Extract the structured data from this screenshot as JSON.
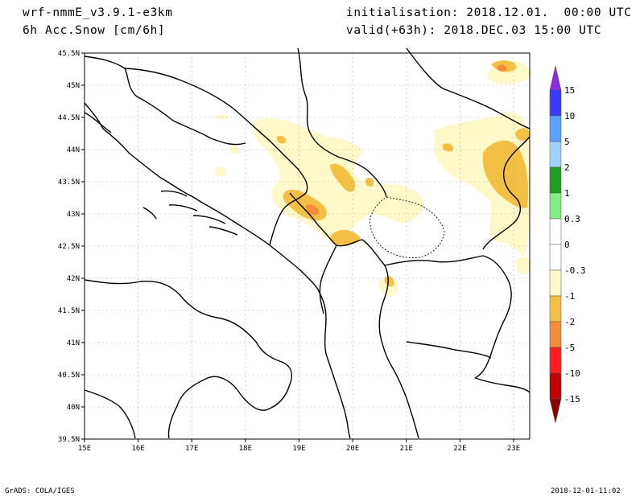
{
  "header": {
    "model": "wrf-nmmE_v3.9.1-e3km",
    "field": "6h Acc.Snow [cm/6h]",
    "init": "initialisation: 2018.12.01.  00:00 UTC",
    "valid": "valid(+63h): 2018.DEC.03 15:00 UTC"
  },
  "axes": {
    "lat_labels": [
      "39.5N",
      "40N",
      "40.5N",
      "41N",
      "41.5N",
      "42N",
      "42.5N",
      "43N",
      "43.5N",
      "44N",
      "44.5N",
      "45N",
      "45.5N"
    ],
    "lon_labels": [
      "15E",
      "16E",
      "17E",
      "18E",
      "19E",
      "20E",
      "21E",
      "22E",
      "23E"
    ],
    "lat_range": [
      39.5,
      45.5
    ],
    "lon_range": [
      15,
      23.3
    ]
  },
  "colorbar": {
    "labels": [
      "15",
      "10",
      "5",
      "2",
      "1",
      "0.3",
      "0",
      "-0.3",
      "-1",
      "-2",
      "-5",
      "-10",
      "-15"
    ],
    "colors": [
      "#8a2be2",
      "#3a3aff",
      "#5aa0ff",
      "#a0d0ff",
      "#1e9e1e",
      "#80ee80",
      "#ffffff",
      "#ffffff",
      "#fff8c8",
      "#f4c043",
      "#f48c3a",
      "#ff1e1e",
      "#c00000",
      "#8b0000"
    ]
  },
  "footer": {
    "left": "GrADS: COLA/IGES",
    "right": "2018-12-01-11:02"
  }
}
